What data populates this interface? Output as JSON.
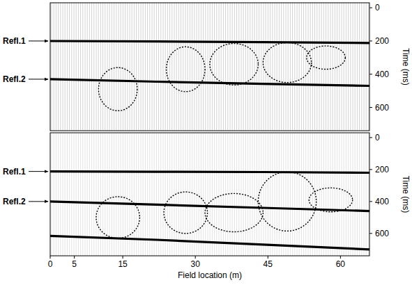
{
  "chart_data": [
    {
      "type": "line",
      "y_label": "Time (ms)",
      "xlim": [
        0,
        66
      ],
      "ylim": [
        -30,
        740
      ],
      "yticks": [
        0,
        200,
        400,
        600
      ],
      "tick_labels": "y",
      "series": [
        {
          "name": "Refl.1",
          "color": "#000000",
          "x": [
            0,
            22,
            44,
            66
          ],
          "values": [
            200,
            203,
            207,
            212
          ]
        },
        {
          "name": "Refl.2",
          "color": "#000000",
          "x": [
            0,
            22,
            44,
            66
          ],
          "values": [
            430,
            445,
            458,
            470
          ]
        }
      ],
      "ellipses": [
        {
          "x": 14,
          "y": 490,
          "width": 8,
          "height": 260
        },
        {
          "x": 28,
          "y": 370,
          "width": 8,
          "height": 270
        },
        {
          "x": 38,
          "y": 340,
          "width": 10,
          "height": 250
        },
        {
          "x": 49,
          "y": 330,
          "width": 10,
          "height": 240
        },
        {
          "x": 57,
          "y": 300,
          "width": 8,
          "height": 140
        }
      ]
    },
    {
      "type": "line",
      "y_label": "Time (ms)",
      "x_label": "Field location (m)",
      "xlim": [
        0,
        66
      ],
      "ylim": [
        -30,
        740
      ],
      "yticks": [
        0,
        200,
        400,
        600
      ],
      "xticks": [
        0,
        5,
        15,
        30,
        45,
        60
      ],
      "series": [
        {
          "name": "Refl.1",
          "color": "#000000",
          "x": [
            0,
            22,
            44,
            66
          ],
          "values": [
            212,
            214,
            216,
            220
          ]
        },
        {
          "name": "Refl.2",
          "color": "#000000",
          "x": [
            0,
            22,
            44,
            66
          ],
          "values": [
            400,
            420,
            440,
            460
          ]
        },
        {
          "color": "#000000",
          "x": [
            0,
            22,
            44,
            66
          ],
          "values": [
            615,
            640,
            670,
            700
          ]
        }
      ],
      "ellipses": [
        {
          "x": 14,
          "y": 500,
          "width": 9,
          "height": 260
        },
        {
          "x": 28,
          "y": 470,
          "width": 9,
          "height": 260
        },
        {
          "x": 38,
          "y": 470,
          "width": 12,
          "height": 240
        },
        {
          "x": 49,
          "y": 400,
          "width": 12,
          "height": 370
        },
        {
          "x": 58,
          "y": 390,
          "width": 9,
          "height": 150
        }
      ]
    }
  ]
}
